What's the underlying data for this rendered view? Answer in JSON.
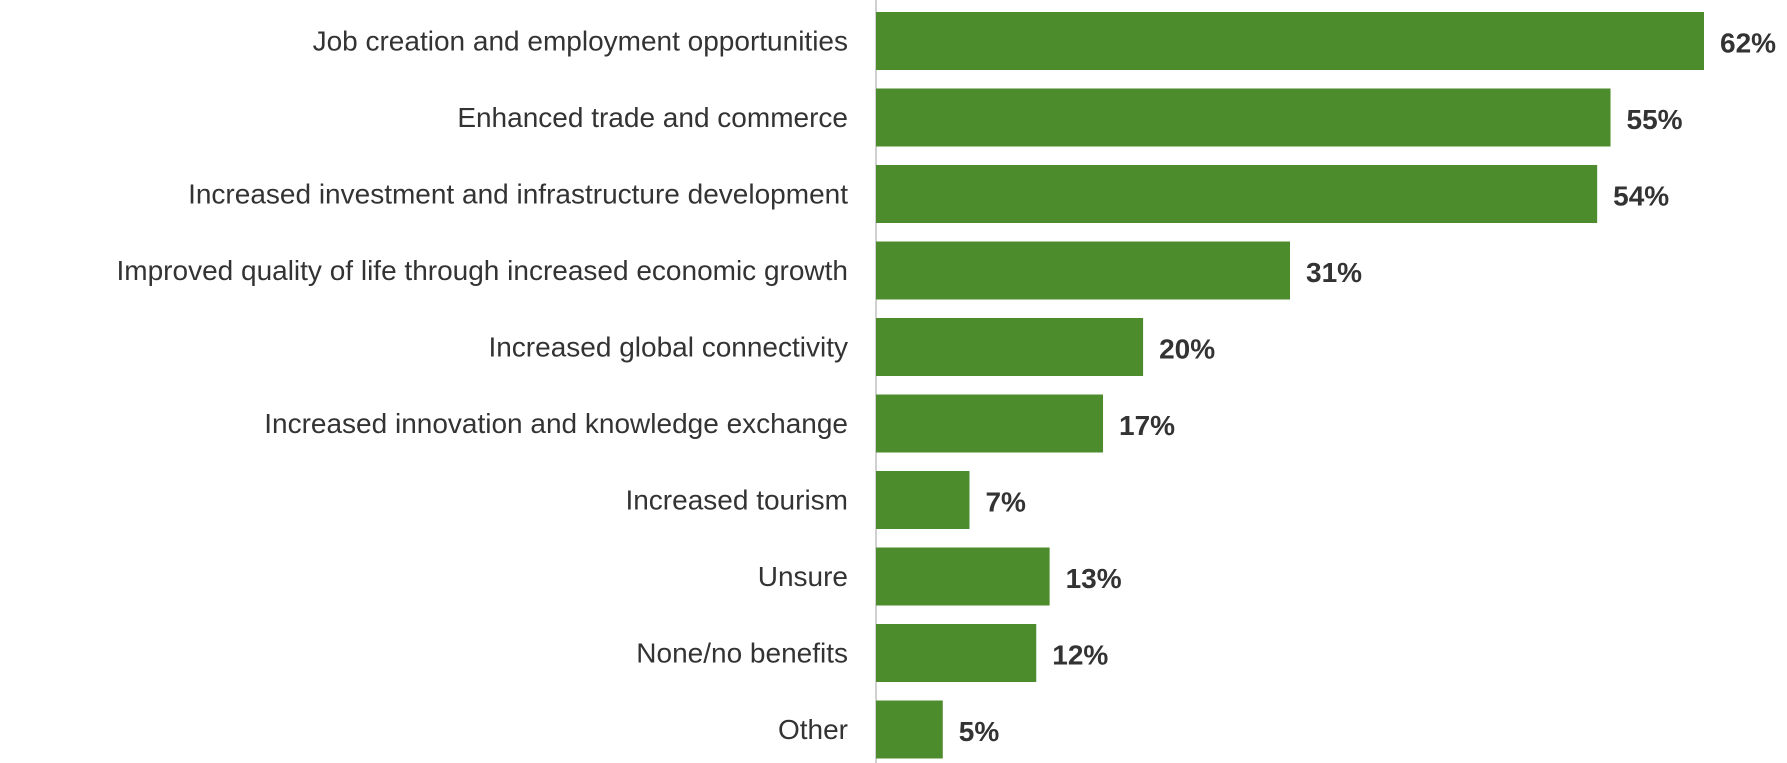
{
  "chart_data": {
    "type": "bar",
    "orientation": "horizontal",
    "categories": [
      "Job creation and employment opportunities",
      "Enhanced trade and commerce",
      "Increased investment and infrastructure development",
      "Improved quality of life through increased economic growth",
      "Increased global connectivity",
      "Increased innovation and knowledge exchange",
      "Increased tourism",
      "Unsure",
      "None/no benefits",
      "Other"
    ],
    "values": [
      62,
      55,
      54,
      31,
      20,
      17,
      7,
      13,
      12,
      5
    ],
    "value_labels": [
      "62%",
      "55%",
      "54%",
      "31%",
      "20%",
      "17%",
      "7%",
      "13%",
      "12%",
      "5%"
    ],
    "unit": "%",
    "title": "",
    "xlabel": "",
    "ylabel": "",
    "xlim": [
      0,
      62
    ],
    "grid": false,
    "legend": "none",
    "colors": {
      "bar": "#4d8c2d",
      "axis": "#d0d0d0",
      "text": "#333333"
    }
  }
}
